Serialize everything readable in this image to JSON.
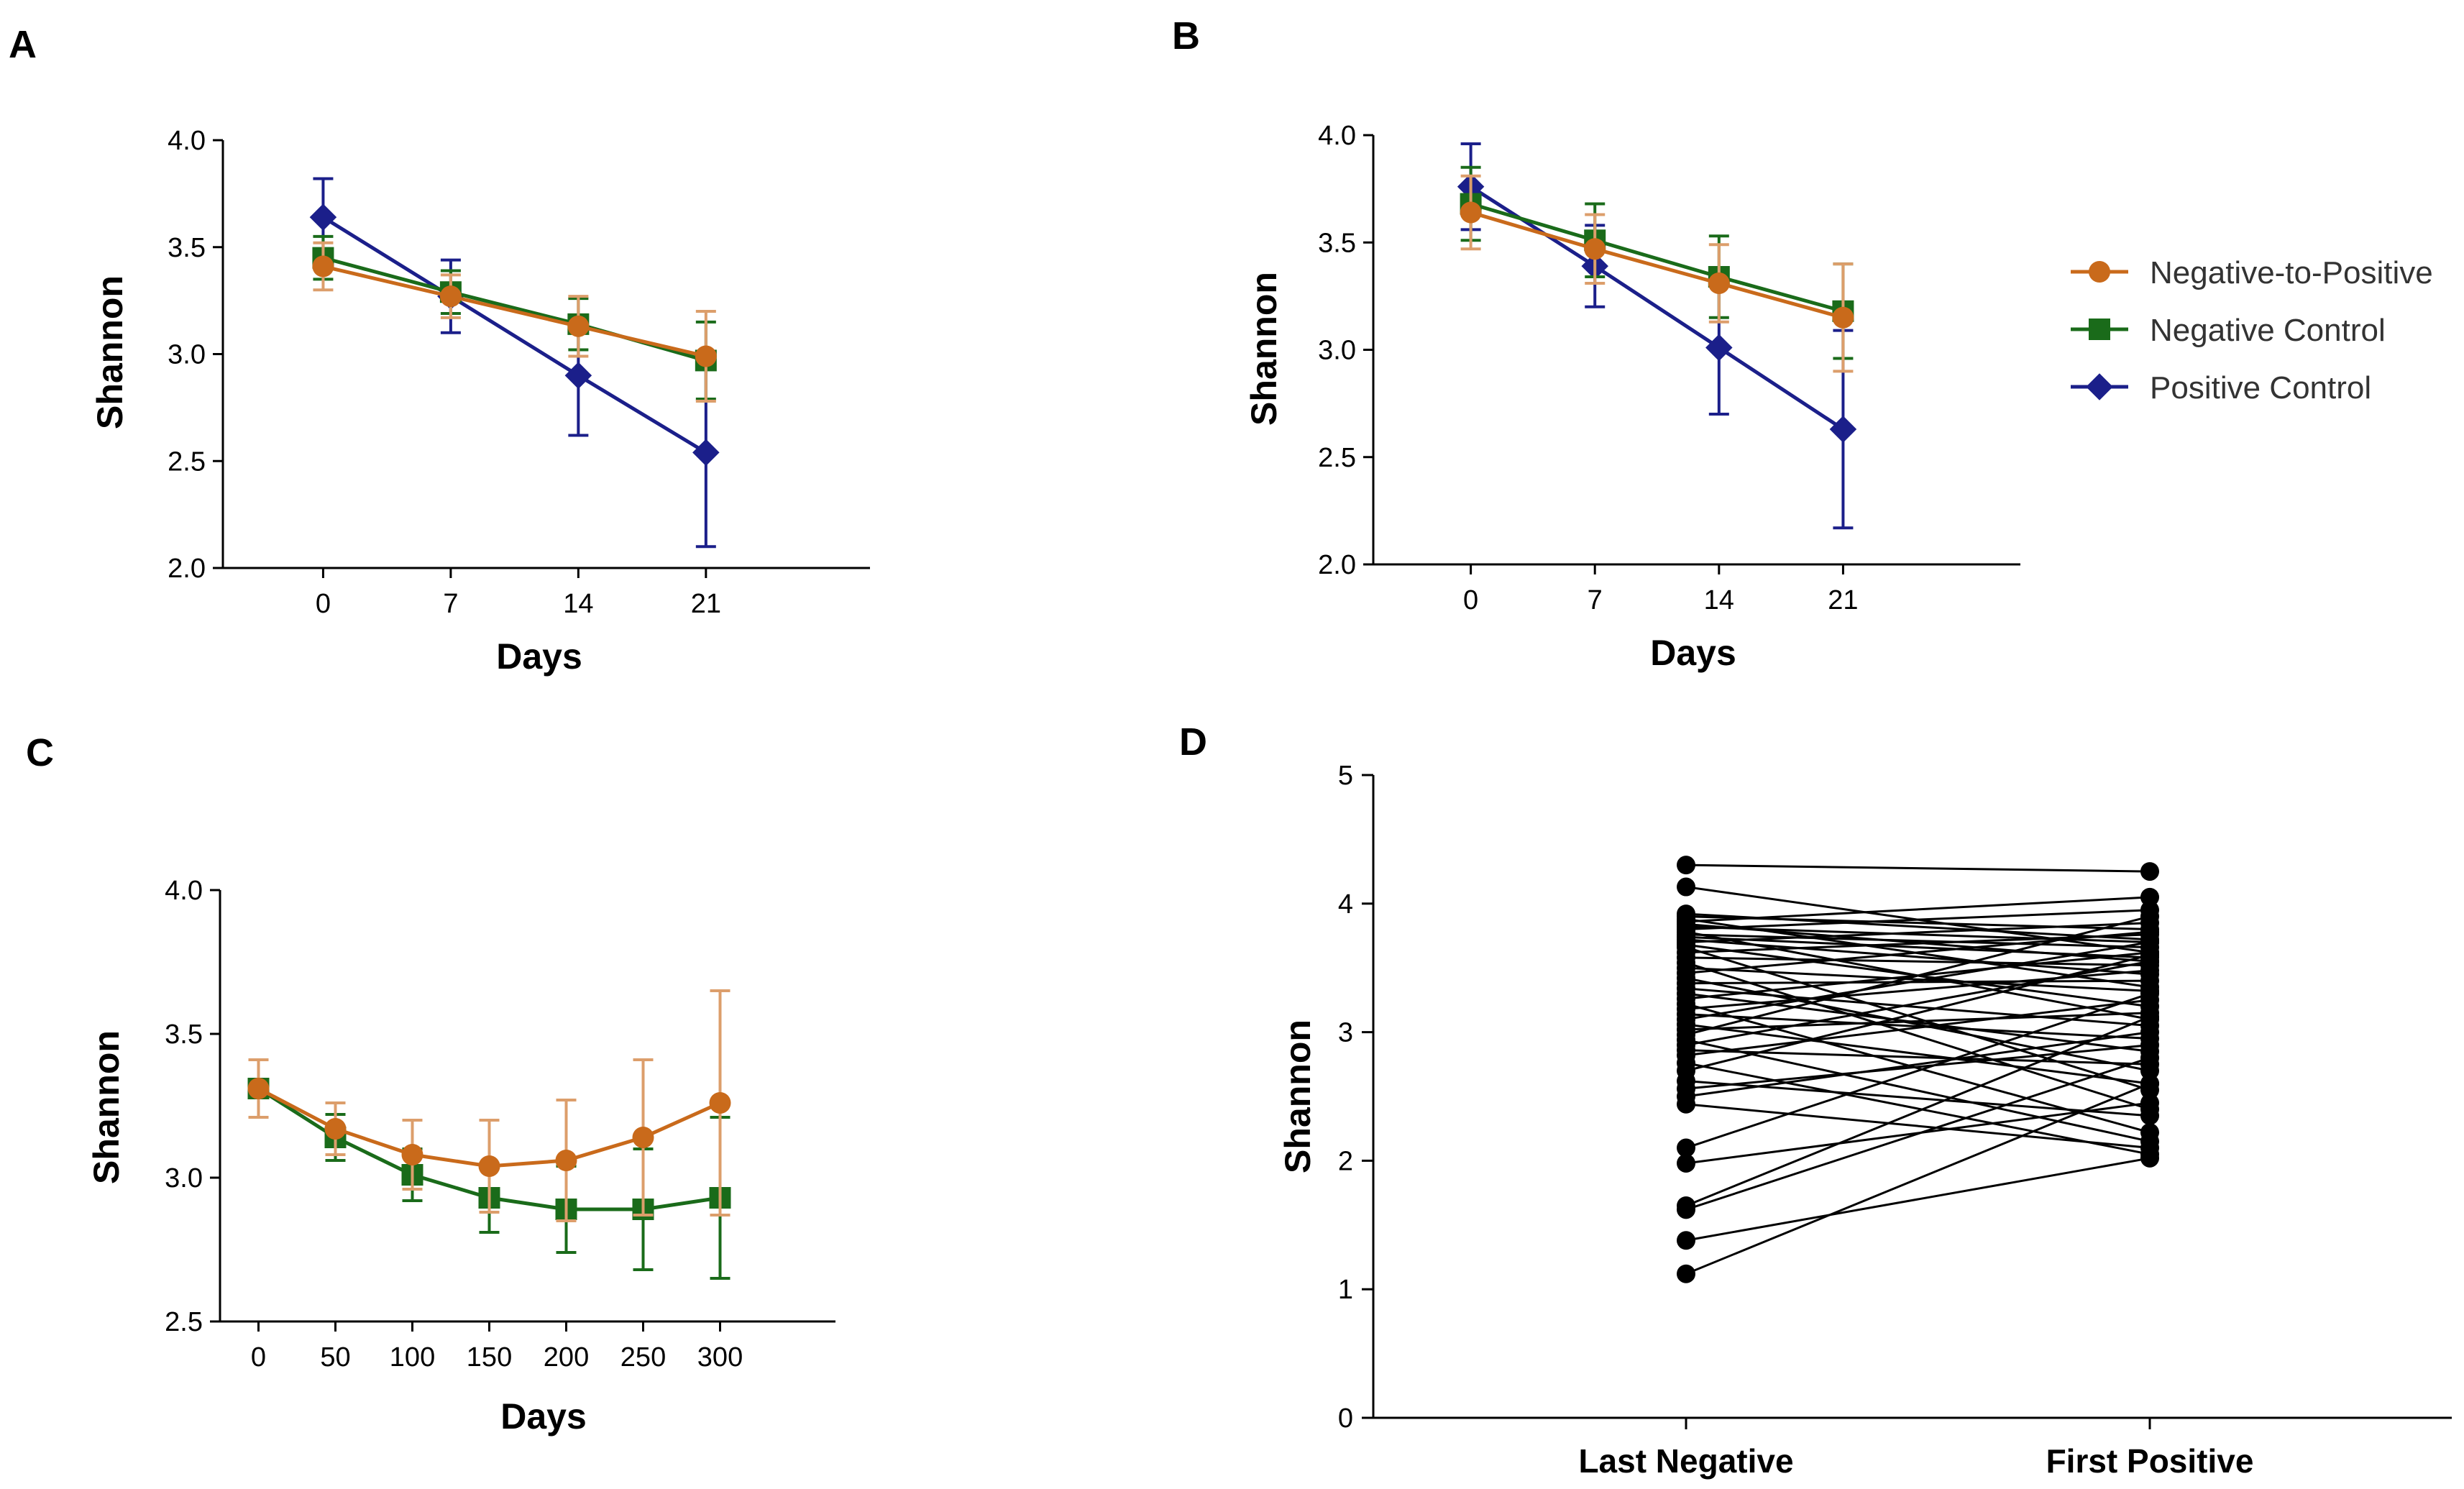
{
  "figure": {
    "panels": [
      "A",
      "B",
      "C",
      "D"
    ],
    "legend": [
      {
        "name": "Negative-to-Positive",
        "color": "#C96A1B",
        "marker": "circle"
      },
      {
        "name": "Negative Control",
        "color": "#1A6B1A",
        "marker": "square"
      },
      {
        "name": "Positive Control",
        "color": "#1B1F8A",
        "marker": "diamond"
      }
    ]
  },
  "chart_data": [
    {
      "panel": "A",
      "type": "line",
      "xlabel": "Days",
      "ylabel": "Shannon",
      "x": [
        0,
        7,
        14,
        21
      ],
      "xticks": [
        "0",
        "7",
        "14",
        "21"
      ],
      "yticks": [
        "2.0",
        "2.5",
        "3.0",
        "3.5",
        "4.0"
      ],
      "ylim": [
        2.0,
        4.0
      ],
      "series": [
        {
          "name": "Positive Control",
          "color": "#1B1F8A",
          "marker": "diamond",
          "values": [
            3.64,
            3.27,
            2.9,
            2.54
          ],
          "err": [
            0.18,
            0.17,
            0.28,
            0.44
          ]
        },
        {
          "name": "Negative Control",
          "color": "#1A6B1A",
          "marker": "square",
          "values": [
            3.45,
            3.29,
            3.14,
            2.97
          ],
          "err": [
            0.1,
            0.1,
            0.12,
            0.18
          ]
        },
        {
          "name": "Negative-to-Positive",
          "color": "#C96A1B",
          "marker": "circle",
          "values": [
            3.41,
            3.27,
            3.13,
            2.99
          ],
          "err": [
            0.11,
            0.1,
            0.14,
            0.21
          ]
        }
      ]
    },
    {
      "panel": "B",
      "type": "line",
      "xlabel": "Days",
      "ylabel": "Shannon",
      "x": [
        0,
        7,
        14,
        21
      ],
      "xticks": [
        "0",
        "7",
        "14",
        "21"
      ],
      "yticks": [
        "2.0",
        "2.5",
        "3.0",
        "3.5",
        "4.0"
      ],
      "ylim": [
        2.0,
        4.0
      ],
      "legend_position": "right",
      "series": [
        {
          "name": "Positive Control",
          "color": "#1B1F8A",
          "marker": "diamond",
          "values": [
            3.76,
            3.39,
            3.01,
            2.63
          ],
          "err": [
            0.2,
            0.19,
            0.31,
            0.46
          ]
        },
        {
          "name": "Negative Control",
          "color": "#1A6B1A",
          "marker": "square",
          "values": [
            3.68,
            3.51,
            3.34,
            3.18
          ],
          "err": [
            0.17,
            0.17,
            0.19,
            0.22
          ]
        },
        {
          "name": "Negative-to-Positive",
          "color": "#C96A1B",
          "marker": "circle",
          "values": [
            3.64,
            3.47,
            3.31,
            3.15
          ],
          "err": [
            0.17,
            0.16,
            0.18,
            0.25
          ]
        }
      ]
    },
    {
      "panel": "C",
      "type": "line",
      "xlabel": "Days",
      "ylabel": "Shannon",
      "x": [
        0,
        50,
        100,
        150,
        200,
        250,
        300
      ],
      "xticks": [
        "0",
        "50",
        "100",
        "150",
        "200",
        "250",
        "300"
      ],
      "yticks": [
        "2.5",
        "3.0",
        "3.5",
        "4.0"
      ],
      "ylim": [
        2.5,
        4.0
      ],
      "series": [
        {
          "name": "Negative Control",
          "color": "#1A6B1A",
          "marker": "square",
          "values": [
            3.31,
            3.14,
            3.01,
            2.93,
            2.89,
            2.89,
            2.93
          ],
          "err": [
            0.1,
            0.08,
            0.09,
            0.12,
            0.15,
            0.21,
            0.28
          ]
        },
        {
          "name": "Negative-to-Positive",
          "color": "#C96A1B",
          "marker": "circle",
          "values": [
            3.31,
            3.17,
            3.08,
            3.04,
            3.06,
            3.14,
            3.26
          ],
          "err": [
            0.1,
            0.09,
            0.12,
            0.16,
            0.21,
            0.27,
            0.39
          ]
        }
      ]
    },
    {
      "panel": "D",
      "type": "scatter",
      "ylabel": "Shannon",
      "categories": [
        "Last Negative",
        "First Positive"
      ],
      "yticks": [
        "0",
        "1",
        "2",
        "3",
        "4",
        "5"
      ],
      "ylim": [
        0,
        5
      ],
      "pairs": [
        [
          4.3,
          4.25
        ],
        [
          4.13,
          3.62
        ],
        [
          3.92,
          3.72
        ],
        [
          3.9,
          3.8
        ],
        [
          3.88,
          3.35
        ],
        [
          3.86,
          4.05
        ],
        [
          3.84,
          3.55
        ],
        [
          3.82,
          3.7
        ],
        [
          3.8,
          3.95
        ],
        [
          3.78,
          3.1
        ],
        [
          3.76,
          3.66
        ],
        [
          3.74,
          3.58
        ],
        [
          3.72,
          3.45
        ],
        [
          3.7,
          3.85
        ],
        [
          3.68,
          3.2
        ],
        [
          3.66,
          2.55
        ],
        [
          3.62,
          3.76
        ],
        [
          3.58,
          3.52
        ],
        [
          3.54,
          2.4
        ],
        [
          3.5,
          3.32
        ],
        [
          3.46,
          3.78
        ],
        [
          3.42,
          2.7
        ],
        [
          3.38,
          3.4
        ],
        [
          3.34,
          3.05
        ],
        [
          3.3,
          2.85
        ],
        [
          3.26,
          3.62
        ],
        [
          3.22,
          2.22
        ],
        [
          3.18,
          3.48
        ],
        [
          3.14,
          2.95
        ],
        [
          3.1,
          3.7
        ],
        [
          3.06,
          2.6
        ],
        [
          3.02,
          3.15
        ],
        [
          2.98,
          3.9
        ],
        [
          2.94,
          2.15
        ],
        [
          2.9,
          3.55
        ],
        [
          2.86,
          2.75
        ],
        [
          2.82,
          3.25
        ],
        [
          2.76,
          2.05
        ],
        [
          2.7,
          3.6
        ],
        [
          2.62,
          2.35
        ],
        [
          2.56,
          2.9
        ],
        [
          2.5,
          3.0
        ],
        [
          2.44,
          2.1
        ],
        [
          2.1,
          3.3
        ],
        [
          1.98,
          2.45
        ],
        [
          1.65,
          3.12
        ],
        [
          1.62,
          2.8
        ],
        [
          1.38,
          2.02
        ],
        [
          1.12,
          2.6
        ]
      ]
    }
  ]
}
